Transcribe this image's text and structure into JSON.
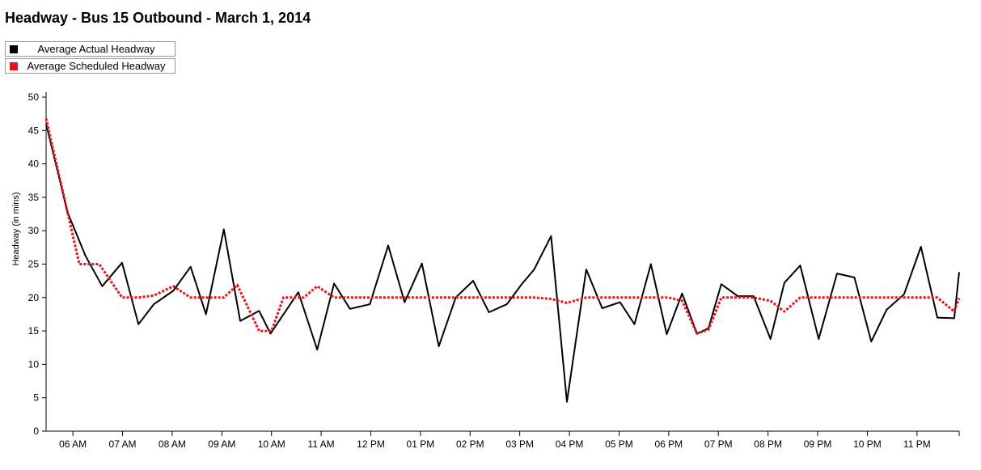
{
  "colors": {
    "actual": "#000000",
    "scheduled": "#e8141b"
  },
  "chart_data": {
    "type": "line",
    "title": "Headway - Bus 15 Outbound - March 1, 2014",
    "xlabel": "",
    "ylabel": "Headway (in mins)",
    "ylim": [
      0,
      50
    ],
    "yticks": [
      0,
      5,
      10,
      15,
      20,
      25,
      30,
      35,
      40,
      45,
      50
    ],
    "xlim_hours": [
      5.46,
      23.85
    ],
    "xticks": [
      {
        "label": "06 AM",
        "hour": 6
      },
      {
        "label": "07 AM",
        "hour": 7
      },
      {
        "label": "08 AM",
        "hour": 8
      },
      {
        "label": "09 AM",
        "hour": 9
      },
      {
        "label": "10 AM",
        "hour": 10
      },
      {
        "label": "11 AM",
        "hour": 11
      },
      {
        "label": "12 PM",
        "hour": 12
      },
      {
        "label": "01 PM",
        "hour": 13
      },
      {
        "label": "02 PM",
        "hour": 14
      },
      {
        "label": "03 PM",
        "hour": 15
      },
      {
        "label": "04 PM",
        "hour": 16
      },
      {
        "label": "05 PM",
        "hour": 17
      },
      {
        "label": "06 PM",
        "hour": 18
      },
      {
        "label": "07 PM",
        "hour": 19
      },
      {
        "label": "08 PM",
        "hour": 20
      },
      {
        "label": "09 PM",
        "hour": 21
      },
      {
        "label": "10 PM",
        "hour": 22
      },
      {
        "label": "11 PM",
        "hour": 23
      }
    ],
    "legend_position": "top-left",
    "grid": false,
    "series": [
      {
        "name": "Average Actual Headway",
        "style": "solid",
        "points": [
          [
            5.46,
            46.0
          ],
          [
            5.89,
            32.8
          ],
          [
            6.25,
            26.3
          ],
          [
            6.59,
            21.7
          ],
          [
            6.99,
            25.2
          ],
          [
            7.32,
            16.0
          ],
          [
            7.63,
            19.0
          ],
          [
            8.02,
            21.0
          ],
          [
            8.37,
            24.6
          ],
          [
            8.68,
            17.5
          ],
          [
            9.04,
            30.2
          ],
          [
            9.37,
            16.5
          ],
          [
            9.75,
            18.0
          ],
          [
            9.98,
            14.6
          ],
          [
            10.54,
            20.8
          ],
          [
            10.92,
            12.2
          ],
          [
            11.26,
            22.1
          ],
          [
            11.58,
            18.3
          ],
          [
            11.98,
            19.0
          ],
          [
            12.35,
            27.8
          ],
          [
            12.68,
            19.3
          ],
          [
            13.03,
            25.1
          ],
          [
            13.37,
            12.7
          ],
          [
            13.71,
            20.0
          ],
          [
            14.06,
            22.5
          ],
          [
            14.38,
            17.8
          ],
          [
            14.74,
            19.0
          ],
          [
            15.04,
            22.0
          ],
          [
            15.29,
            24.2
          ],
          [
            15.63,
            29.2
          ],
          [
            15.95,
            4.4
          ],
          [
            16.34,
            24.2
          ],
          [
            16.66,
            18.4
          ],
          [
            17.02,
            19.3
          ],
          [
            17.31,
            16.0
          ],
          [
            17.64,
            25.0
          ],
          [
            17.96,
            14.5
          ],
          [
            18.27,
            20.6
          ],
          [
            18.57,
            14.6
          ],
          [
            18.8,
            15.4
          ],
          [
            19.06,
            22.0
          ],
          [
            19.39,
            20.2
          ],
          [
            19.71,
            20.2
          ],
          [
            20.05,
            13.8
          ],
          [
            20.33,
            22.2
          ],
          [
            20.65,
            24.8
          ],
          [
            21.02,
            13.8
          ],
          [
            21.39,
            23.6
          ],
          [
            21.74,
            23.0
          ],
          [
            22.08,
            13.4
          ],
          [
            22.39,
            18.2
          ],
          [
            22.74,
            20.5
          ],
          [
            23.08,
            27.6
          ],
          [
            23.41,
            17.0
          ],
          [
            23.75,
            16.9
          ],
          [
            23.85,
            23.8
          ]
        ]
      },
      {
        "name": "Average Scheduled Headway",
        "style": "dotted",
        "points": [
          [
            5.46,
            46.8
          ],
          [
            6.13,
            25.0
          ],
          [
            6.53,
            25.0
          ],
          [
            6.99,
            20.0
          ],
          [
            7.32,
            20.0
          ],
          [
            7.63,
            20.3
          ],
          [
            8.02,
            21.7
          ],
          [
            8.37,
            20.0
          ],
          [
            8.68,
            20.0
          ],
          [
            9.04,
            20.0
          ],
          [
            9.31,
            21.9
          ],
          [
            9.75,
            15.0
          ],
          [
            10.0,
            15.0
          ],
          [
            10.24,
            20.0
          ],
          [
            10.65,
            20.0
          ],
          [
            10.92,
            21.7
          ],
          [
            11.26,
            20.0
          ],
          [
            13.0,
            20.0
          ],
          [
            14.5,
            20.0
          ],
          [
            15.29,
            20.0
          ],
          [
            15.63,
            19.8
          ],
          [
            15.95,
            19.2
          ],
          [
            16.34,
            20.0
          ],
          [
            17.31,
            20.0
          ],
          [
            18.0,
            20.0
          ],
          [
            18.27,
            19.5
          ],
          [
            18.57,
            14.6
          ],
          [
            18.8,
            15.2
          ],
          [
            19.06,
            20.0
          ],
          [
            19.71,
            20.0
          ],
          [
            20.05,
            19.5
          ],
          [
            20.33,
            17.9
          ],
          [
            20.65,
            20.0
          ],
          [
            21.39,
            20.0
          ],
          [
            22.39,
            20.0
          ],
          [
            23.41,
            20.0
          ],
          [
            23.75,
            17.9
          ],
          [
            23.85,
            19.9
          ]
        ]
      }
    ]
  }
}
